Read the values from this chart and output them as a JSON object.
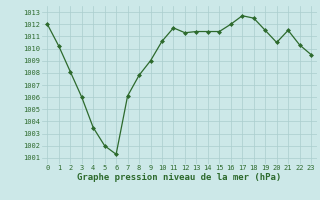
{
  "x": [
    0,
    1,
    2,
    3,
    4,
    5,
    6,
    7,
    8,
    9,
    10,
    11,
    12,
    13,
    14,
    15,
    16,
    17,
    18,
    19,
    20,
    21,
    22,
    23
  ],
  "y": [
    1012,
    1010.2,
    1008.1,
    1006.0,
    1003.5,
    1002.0,
    1001.3,
    1006.1,
    1007.8,
    1009.0,
    1010.6,
    1011.7,
    1011.3,
    1011.4,
    1011.4,
    1011.4,
    1012.0,
    1012.7,
    1012.5,
    1011.5,
    1010.5,
    1011.5,
    1010.3,
    1009.5
  ],
  "line_color": "#2d6a2d",
  "marker_color": "#2d6a2d",
  "bg_color": "#cce8e8",
  "grid_color": "#aacece",
  "title": "Graphe pression niveau de la mer (hPa)",
  "ylim_min": 1000.5,
  "ylim_max": 1013.5,
  "xlim_min": -0.5,
  "xlim_max": 23.5,
  "yticks": [
    1001,
    1002,
    1003,
    1004,
    1005,
    1006,
    1007,
    1008,
    1009,
    1010,
    1011,
    1012,
    1013
  ],
  "xticks": [
    0,
    1,
    2,
    3,
    4,
    5,
    6,
    7,
    8,
    9,
    10,
    11,
    12,
    13,
    14,
    15,
    16,
    17,
    18,
    19,
    20,
    21,
    22,
    23
  ],
  "title_fontsize": 6.5,
  "tick_fontsize": 5.0
}
